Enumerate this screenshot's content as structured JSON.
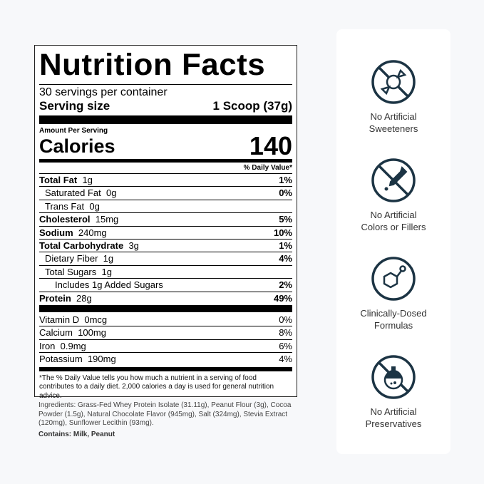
{
  "label": {
    "title": "Nutrition Facts",
    "servings": "30 servings per container",
    "serving_size_label": "Serving size",
    "serving_size": "1 Scoop (37g)",
    "amount_per_serving": "Amount Per Serving",
    "calories_label": "Calories",
    "calories": "140",
    "dv_header": "% Daily Value*",
    "nutrients": [
      {
        "name": "Total Fat",
        "amount": "1g",
        "dv": "1%",
        "bold": true,
        "indent": 0
      },
      {
        "name": "Saturated Fat",
        "amount": "0g",
        "dv": "0%",
        "bold": false,
        "indent": 1
      },
      {
        "name": "Trans Fat",
        "amount": "0g",
        "dv": "",
        "bold": false,
        "indent": 1
      },
      {
        "name": "Cholesterol",
        "amount": "15mg",
        "dv": "5%",
        "bold": true,
        "indent": 0
      },
      {
        "name": "Sodium",
        "amount": "240mg",
        "dv": "10%",
        "bold": true,
        "indent": 0
      },
      {
        "name": "Total Carbohydrate",
        "amount": "3g",
        "dv": "1%",
        "bold": true,
        "indent": 0
      },
      {
        "name": "Dietary Fiber",
        "amount": "1g",
        "dv": "4%",
        "bold": false,
        "indent": 1
      },
      {
        "name": "Total Sugars",
        "amount": "1g",
        "dv": "",
        "bold": false,
        "indent": 1
      },
      {
        "name": "Includes 1g Added Sugars",
        "amount": "",
        "dv": "2%",
        "bold": false,
        "indent": 2
      },
      {
        "name": "Protein",
        "amount": "28g",
        "dv": "49%",
        "bold": true,
        "indent": 0
      }
    ],
    "vitamins": [
      {
        "name": "Vitamin D",
        "amount": "0mcg",
        "dv": "0%"
      },
      {
        "name": "Calcium",
        "amount": "100mg",
        "dv": "8%"
      },
      {
        "name": "Iron",
        "amount": "0.9mg",
        "dv": "6%"
      },
      {
        "name": "Potassium",
        "amount": "190mg",
        "dv": "4%"
      }
    ],
    "footnote": "*The % Daily Value tells you how much a nutrient in a serving of food contributes to a daily diet. 2,000 calories a day is used for general nutrition advice."
  },
  "ingredients": "Ingredients: Grass-Fed Whey Protein Isolate (31.11g), Peanut Flour (3g), Cocoa Powder (1.5g), Natural Chocolate Flavor (945mg), Salt (324mg), Stevia Extract (120mg), Sunflower Lecithin (93mg).",
  "contains": "Contains: Milk, Peanut",
  "features": [
    {
      "icon": "no-candy-icon",
      "line1": "No Artificial",
      "line2": "Sweeteners"
    },
    {
      "icon": "no-dropper-icon",
      "line1": "No Artificial",
      "line2": "Colors or Fillers"
    },
    {
      "icon": "molecule-icon",
      "line1": "Clinically-Dosed",
      "line2": "Formulas"
    },
    {
      "icon": "no-flask-icon",
      "line1": "No Artificial",
      "line2": "Preservatives"
    }
  ],
  "colors": {
    "icon": "#1c3444",
    "background": "#f7f8fa"
  }
}
